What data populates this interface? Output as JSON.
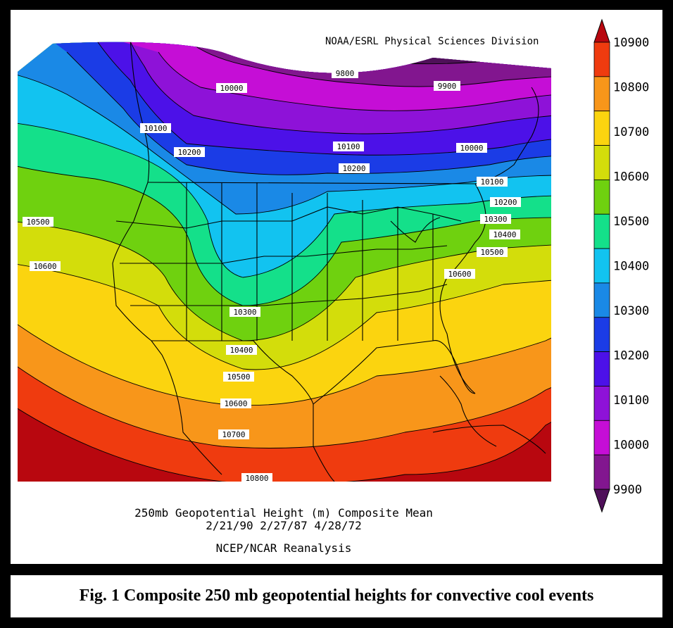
{
  "credit": "NOAA/ESRL Physical Sciences Division",
  "footer": {
    "line1": "250mb Geopotential Height (m) Composite Mean",
    "line2": "2/21/90 2/27/87 4/28/72",
    "line3": "NCEP/NCAR Reanalysis"
  },
  "caption": "Fig. 1 Composite 250 mb geopotential heights for convective cool events",
  "colorbar": {
    "levels": [
      {
        "label": "10900",
        "color": "#b8070f"
      },
      {
        "label": "10800",
        "color": "#ef3b0f"
      },
      {
        "label": "10700",
        "color": "#f8961a"
      },
      {
        "label": "10600",
        "color": "#fbd40f"
      },
      {
        "label": "10500",
        "color": "#d3dd0b"
      },
      {
        "label": "10400",
        "color": "#6fd10f"
      },
      {
        "label": "10300",
        "color": "#14e08a"
      },
      {
        "label": "10200",
        "color": "#12c3f0"
      },
      {
        "label": "10100",
        "color": "#1a89e6"
      },
      {
        "label": "10000",
        "color": "#1b3ce6"
      },
      {
        "label": "9900",
        "color": "#4c11e8"
      },
      {
        "label": "",
        "color": "#8e12d8"
      },
      {
        "label": "",
        "color": "#c50ed6"
      },
      {
        "label": "",
        "color": "#82168f"
      },
      {
        "label": "",
        "color": "#4f1059"
      }
    ]
  },
  "contour_labels": [
    "9800",
    "9900",
    "10000",
    "10000",
    "10100",
    "10100",
    "10100",
    "10200",
    "10200",
    "10200",
    "10300",
    "10300",
    "10400",
    "10400",
    "10500",
    "10500",
    "10500",
    "10600",
    "10600",
    "10600",
    "10700",
    "10800"
  ]
}
